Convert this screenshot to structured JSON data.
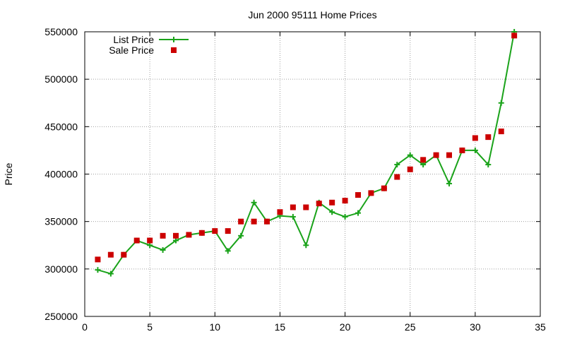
{
  "chart_data": {
    "type": "line",
    "title": "Jun 2000 95111 Home Prices",
    "xlabel": "",
    "ylabel": "Price",
    "xlim": [
      0,
      35
    ],
    "ylim": [
      250000,
      550000
    ],
    "x_ticks": [
      0,
      5,
      10,
      15,
      20,
      25,
      30,
      35
    ],
    "y_ticks": [
      250000,
      300000,
      350000,
      400000,
      450000,
      500000,
      550000
    ],
    "grid": true,
    "legend_position": "top-left",
    "series": [
      {
        "name": "List Price",
        "style": "line-with-plus-markers",
        "color": "#1aa31a",
        "x": [
          1,
          2,
          3,
          4,
          5,
          6,
          7,
          8,
          9,
          10,
          11,
          12,
          13,
          14,
          15,
          16,
          17,
          18,
          19,
          20,
          21,
          22,
          23,
          24,
          25,
          26,
          27,
          28,
          29,
          30,
          31,
          32,
          33
        ],
        "values": [
          299000,
          295000,
          315000,
          330000,
          325000,
          320000,
          330000,
          336000,
          338000,
          340000,
          319000,
          335000,
          370000,
          350000,
          356000,
          355000,
          325000,
          370000,
          360000,
          355000,
          359000,
          380000,
          385000,
          410000,
          420000,
          410000,
          420000,
          390000,
          425000,
          425000,
          410000,
          475000,
          550000
        ]
      },
      {
        "name": "Sale Price",
        "style": "square-markers",
        "color": "#cc0000",
        "x": [
          1,
          2,
          3,
          4,
          5,
          6,
          7,
          8,
          9,
          10,
          11,
          12,
          13,
          14,
          15,
          16,
          17,
          18,
          19,
          20,
          21,
          22,
          23,
          24,
          25,
          26,
          27,
          28,
          29,
          30,
          31,
          32,
          33
        ],
        "values": [
          310000,
          315000,
          315000,
          330000,
          330000,
          335000,
          335000,
          336000,
          338000,
          340000,
          340000,
          350000,
          350000,
          350000,
          360000,
          365000,
          365000,
          369000,
          370000,
          372000,
          378000,
          380000,
          385000,
          397000,
          405000,
          415000,
          420000,
          420000,
          425000,
          438000,
          439000,
          445000,
          546000
        ]
      }
    ]
  }
}
